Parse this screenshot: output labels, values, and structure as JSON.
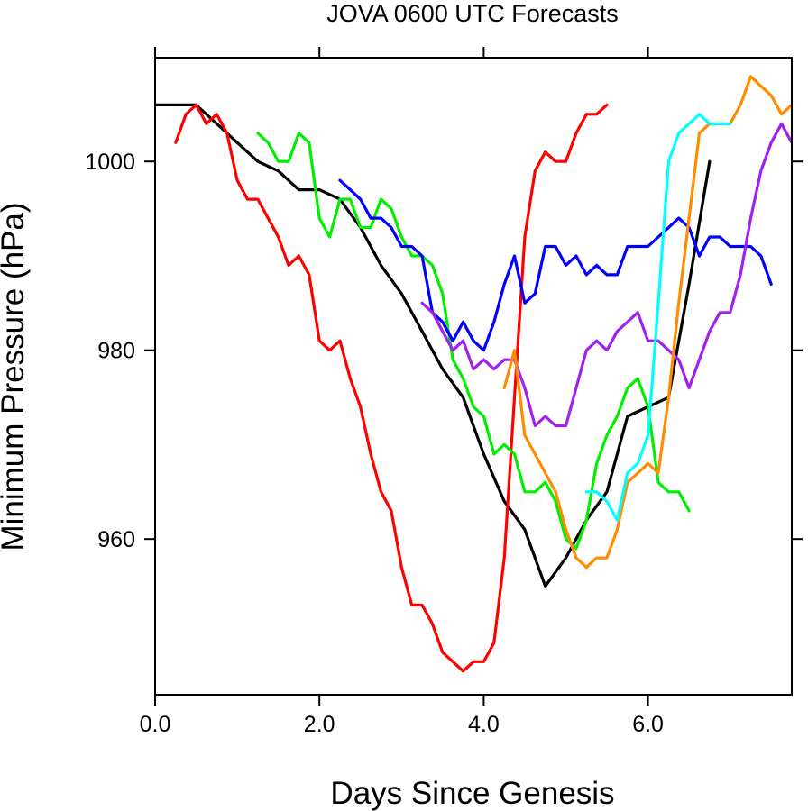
{
  "chart_data": {
    "type": "line",
    "title": "JOVA 0600 UTC Forecasts",
    "xlabel": "Days Since Genesis",
    "ylabel": "Minimum Pressure (hPa)",
    "xlim": [
      0,
      7.75
    ],
    "ylim": [
      943.5,
      1011
    ],
    "xticks": [
      0,
      2,
      4,
      6
    ],
    "xtick_labels": [
      "0.0",
      "2.0",
      "4.0",
      "6.0"
    ],
    "yticks": [
      960,
      980,
      1000
    ],
    "ytick_labels": [
      "960",
      "980",
      "1000"
    ],
    "grid": false,
    "series": [
      {
        "color": "#000000",
        "x": [
          0,
          0.5,
          0.75,
          1.0,
          1.25,
          1.5,
          1.75,
          2.0,
          2.25,
          2.5,
          2.75,
          3.0,
          3.25,
          3.5,
          3.75,
          4.0,
          4.25,
          4.5,
          4.75,
          5.0,
          5.25,
          5.5,
          5.75,
          6.0,
          6.25,
          6.5,
          6.75
        ],
        "y": [
          1006,
          1006,
          1004,
          1002,
          1000,
          999,
          997,
          997,
          996,
          993,
          989,
          986,
          982,
          978,
          975,
          969,
          964,
          961,
          955,
          958,
          962,
          965,
          973,
          974,
          975,
          987,
          1000
        ]
      },
      {
        "color": "#ff0000",
        "x": [
          0.25,
          0.375,
          0.5,
          0.625,
          0.75,
          0.875,
          1.0,
          1.125,
          1.25,
          1.375,
          1.5,
          1.625,
          1.75,
          1.875,
          2.0,
          2.125,
          2.25,
          2.375,
          2.5,
          2.625,
          2.75,
          2.875,
          3.0,
          3.125,
          3.25,
          3.375,
          3.5,
          3.625,
          3.75,
          3.875,
          4.0,
          4.125,
          4.25,
          4.375,
          4.5,
          4.625,
          4.75,
          4.875,
          5.0,
          5.125,
          5.25,
          5.375,
          5.5
        ],
        "y": [
          1002,
          1005,
          1006,
          1004,
          1005,
          1003,
          998,
          996,
          996,
          994,
          992,
          989,
          990,
          988,
          981,
          980,
          981,
          977,
          974,
          969,
          965,
          963,
          957,
          953,
          953,
          951,
          948,
          947,
          946,
          947,
          947,
          949,
          958,
          975,
          992,
          999,
          1001,
          1000,
          1000,
          1003,
          1005,
          1005,
          1006
        ]
      },
      {
        "color": "#00ee00",
        "x": [
          1.25,
          1.375,
          1.5,
          1.625,
          1.75,
          1.875,
          2.0,
          2.125,
          2.25,
          2.375,
          2.5,
          2.625,
          2.75,
          2.875,
          3.0,
          3.125,
          3.25,
          3.375,
          3.5,
          3.625,
          3.75,
          3.875,
          4.0,
          4.125,
          4.25,
          4.375,
          4.5,
          4.625,
          4.75,
          4.875,
          5.0,
          5.125,
          5.25,
          5.375,
          5.5,
          5.625,
          5.75,
          5.875,
          6.0,
          6.125,
          6.25,
          6.375,
          6.5
        ],
        "y": [
          1003,
          1002,
          1000,
          1000,
          1003,
          1002,
          994,
          992,
          996,
          996,
          993,
          993,
          996,
          995,
          992,
          990,
          990,
          989,
          986,
          979,
          977,
          974,
          973,
          969,
          970,
          969,
          965,
          965,
          966,
          964,
          960,
          959,
          962,
          968,
          971,
          973,
          976,
          977,
          974,
          966,
          965,
          965,
          963
        ]
      },
      {
        "color": "#0000ff",
        "x": [
          2.25,
          2.375,
          2.5,
          2.625,
          2.75,
          2.875,
          3.0,
          3.125,
          3.25,
          3.375,
          3.5,
          3.625,
          3.75,
          3.875,
          4.0,
          4.125,
          4.25,
          4.375,
          4.5,
          4.625,
          4.75,
          4.875,
          5.0,
          5.125,
          5.25,
          5.375,
          5.5,
          5.625,
          5.75,
          5.875,
          6.0,
          6.125,
          6.25,
          6.375,
          6.5,
          6.625,
          6.75,
          6.875,
          7.0,
          7.125,
          7.25,
          7.375,
          7.5
        ],
        "y": [
          998,
          997,
          996,
          994,
          994,
          993,
          991,
          991,
          990,
          984,
          983,
          981,
          983,
          981,
          980,
          983,
          987,
          990,
          985,
          986,
          991,
          991,
          989,
          990,
          988,
          989,
          988,
          988,
          991,
          991,
          991,
          992,
          993,
          994,
          993,
          990,
          992,
          992,
          991,
          991,
          991,
          990,
          987
        ]
      },
      {
        "color": "#a020f0",
        "x": [
          3.25,
          3.375,
          3.5,
          3.625,
          3.75,
          3.875,
          4.0,
          4.125,
          4.25,
          4.375,
          4.5,
          4.625,
          4.75,
          4.875,
          5.0,
          5.125,
          5.25,
          5.375,
          5.5,
          5.625,
          5.75,
          5.875,
          6.0,
          6.125,
          6.25,
          6.375,
          6.5,
          6.625,
          6.75,
          6.875,
          7.0,
          7.125,
          7.25,
          7.375,
          7.5,
          7.625,
          7.75
        ],
        "y": [
          985,
          984,
          982,
          980,
          981,
          978,
          979,
          978,
          979,
          979,
          976,
          972,
          973,
          972,
          972,
          976,
          980,
          981,
          980,
          982,
          983,
          984,
          981,
          981,
          980,
          979,
          976,
          979,
          982,
          984,
          984,
          988,
          994,
          999,
          1002,
          1004,
          1002
        ]
      },
      {
        "color": "#ff8c00",
        "x": [
          4.25,
          4.375,
          4.5,
          4.625,
          4.75,
          4.875,
          5.0,
          5.125,
          5.25,
          5.375,
          5.5,
          5.625,
          5.75,
          5.875,
          6.0,
          6.125,
          6.25,
          6.375,
          6.5,
          6.625,
          6.75,
          6.875,
          7.0,
          7.125,
          7.25,
          7.375,
          7.5,
          7.625,
          7.75
        ],
        "y": [
          976,
          980,
          971,
          969,
          967,
          965,
          961,
          958,
          957,
          958,
          958,
          961,
          966,
          967,
          968,
          967,
          975,
          985,
          994,
          1003,
          1004,
          1004,
          1004,
          1006,
          1009,
          1008,
          1007,
          1005,
          1006
        ]
      },
      {
        "color": "#00ffff",
        "x": [
          5.25,
          5.375,
          5.5,
          5.625,
          5.75,
          5.875,
          6.0,
          6.125,
          6.25,
          6.375,
          6.5,
          6.625,
          6.75,
          6.875,
          7.0
        ],
        "y": [
          965,
          965,
          964,
          962,
          967,
          968,
          971,
          985,
          1000,
          1003,
          1004,
          1005,
          1004,
          1004,
          1004
        ]
      }
    ]
  }
}
